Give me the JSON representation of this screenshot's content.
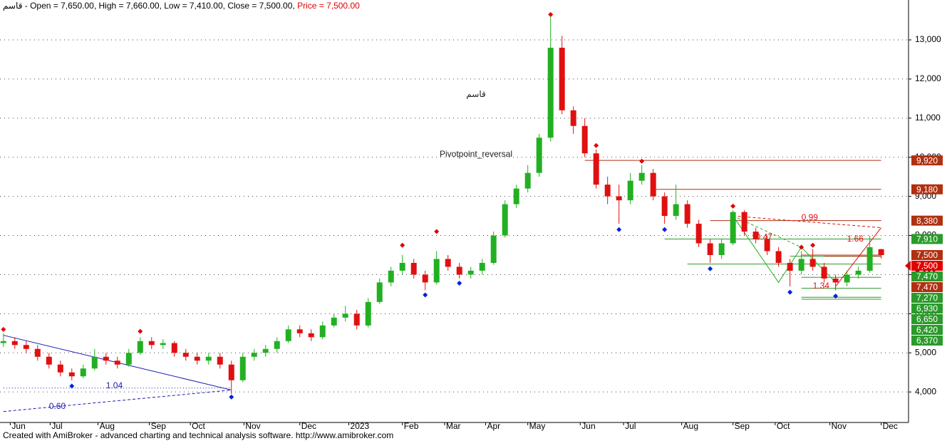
{
  "chart_data": {
    "type": "candlestick",
    "header": {
      "symbol": "قاسم",
      "ohlc": " - Open = 7,650.00, High = 7,660.00, Low = 7,410.00, Close = 7,500.00, ",
      "price": "Price = 7,500.00",
      "price_color": "#e00000"
    },
    "watermark": "قاسم",
    "indicator_name": "Pivotpoint_reversal",
    "footer": "Created with AmiBroker - advanced charting and technical analysis software. http://www.amibroker.com",
    "up_color": "#22b022",
    "down_color": "#e01010",
    "open": [
      5250,
      5300,
      5200,
      5100,
      4900,
      4700,
      4500,
      4400,
      4600,
      4900,
      4800,
      4700,
      5000,
      5300,
      5200,
      5250,
      5000,
      4900,
      4800,
      4900,
      4700,
      4300,
      4900,
      5000,
      5100,
      5300,
      5600,
      5500,
      5400,
      5700,
      5900,
      6000,
      5700,
      6300,
      6800,
      7100,
      7300,
      7000,
      6800,
      7400,
      7200,
      7000,
      7100,
      7300,
      8000,
      8800,
      9200,
      9600,
      10500,
      12800,
      11200,
      10800,
      10100,
      9300,
      9000,
      8900,
      9400,
      9600,
      9000,
      8500,
      8800,
      8300,
      7800,
      7500,
      7800,
      8600,
      8100,
      7900,
      7600,
      7300,
      7100,
      7400,
      7200,
      6900,
      6800,
      7000,
      7100,
      7650
    ],
    "high": [
      5500,
      5400,
      5300,
      5200,
      5000,
      4800,
      4600,
      4700,
      5100,
      5000,
      4900,
      5100,
      5400,
      5400,
      5350,
      5300,
      5100,
      5000,
      5000,
      5000,
      4800,
      5000,
      5100,
      5200,
      5400,
      5700,
      5700,
      5600,
      5800,
      6000,
      6200,
      6100,
      6400,
      6900,
      7200,
      7500,
      7400,
      7100,
      7600,
      7500,
      7300,
      7200,
      7400,
      8100,
      8900,
      9300,
      9800,
      10600,
      13600,
      13100,
      11300,
      11000,
      10200,
      9500,
      9300,
      9600,
      9800,
      9700,
      9100,
      9300,
      8900,
      8400,
      7900,
      7900,
      8650,
      8650,
      8200,
      8000,
      7700,
      7400,
      7600,
      7650,
      7300,
      7000,
      7100,
      7200,
      8000,
      7660
    ],
    "low": [
      5150,
      5100,
      5000,
      4800,
      4600,
      4400,
      4300,
      4350,
      4550,
      4700,
      4600,
      4650,
      4950,
      5100,
      5100,
      4900,
      4800,
      4700,
      4700,
      4600,
      3950,
      4250,
      4800,
      4900,
      5000,
      5250,
      5400,
      5300,
      5350,
      5650,
      5800,
      5600,
      5650,
      6250,
      6700,
      7000,
      6900,
      6600,
      6750,
      7100,
      6900,
      6900,
      7000,
      7250,
      7950,
      8700,
      9100,
      9500,
      10400,
      11100,
      10600,
      10000,
      9200,
      8800,
      8300,
      8800,
      9300,
      8900,
      8300,
      8400,
      8200,
      7700,
      7300,
      7400,
      7750,
      8000,
      7800,
      7500,
      7200,
      6700,
      7000,
      7100,
      6800,
      6600,
      6700,
      6900,
      7050,
      7410
    ],
    "close": [
      5300,
      5200,
      5100,
      4900,
      4700,
      4500,
      4400,
      4600,
      4900,
      4800,
      4700,
      5000,
      5300,
      5200,
      5250,
      5000,
      4900,
      4800,
      4900,
      4700,
      4300,
      4900,
      5000,
      5100,
      5300,
      5600,
      5500,
      5400,
      5700,
      5900,
      6000,
      5700,
      6300,
      6800,
      7100,
      7300,
      7000,
      6800,
      7400,
      7200,
      7000,
      7100,
      7300,
      8000,
      8800,
      9200,
      9600,
      10500,
      12800,
      11200,
      10800,
      10100,
      9300,
      9000,
      8900,
      9400,
      9600,
      9000,
      8500,
      8800,
      8300,
      7800,
      7500,
      7800,
      8600,
      8100,
      7900,
      7600,
      7300,
      7100,
      7400,
      7200,
      6900,
      6800,
      7000,
      7100,
      7700,
      7500
    ],
    "xlim": [
      -0.3,
      79.4
    ],
    "ylim": [
      3220,
      14020
    ],
    "xticks": [
      {
        "value": 0.6,
        "label": "Jun"
      },
      {
        "value": 4.1,
        "label": "Jul"
      },
      {
        "value": 8.3,
        "label": "Aug"
      },
      {
        "value": 12.8,
        "label": "Sep"
      },
      {
        "value": 16.4,
        "label": "Oct"
      },
      {
        "value": 21.1,
        "label": "Nov"
      },
      {
        "value": 26,
        "label": "Dec"
      },
      {
        "value": 30.3,
        "label": "2023"
      },
      {
        "value": 35,
        "label": "Feb"
      },
      {
        "value": 38.7,
        "label": "Mar"
      },
      {
        "value": 42.3,
        "label": "Apr"
      },
      {
        "value": 46,
        "label": "May"
      },
      {
        "value": 50.6,
        "label": "Jun"
      },
      {
        "value": 54.4,
        "label": "Jul"
      },
      {
        "value": 59.5,
        "label": "Aug"
      },
      {
        "value": 64,
        "label": "Sep"
      },
      {
        "value": 67.7,
        "label": "Oct"
      },
      {
        "value": 72.5,
        "label": "Nov"
      },
      {
        "value": 77,
        "label": "Dec"
      }
    ],
    "yticks": [
      {
        "value": 4000,
        "label": "4,000"
      },
      {
        "value": 5000,
        "label": "5,000"
      },
      {
        "value": 6000,
        "label": "6,000"
      },
      {
        "value": 7000,
        "label": "7,000"
      },
      {
        "value": 8000,
        "label": "8,000"
      },
      {
        "value": 9000,
        "label": "9,000"
      },
      {
        "value": 10000,
        "label": "10,000"
      },
      {
        "value": 11000,
        "label": "11,000"
      },
      {
        "value": 12000,
        "label": "12,000"
      },
      {
        "value": 13000,
        "label": "13,000"
      }
    ],
    "grid": true,
    "pivot_highs": {
      "color": "#e00000",
      "x": [
        0,
        12,
        35,
        38,
        48,
        52,
        56,
        64,
        70,
        71
      ],
      "values": [
        5600,
        5550,
        7750,
        8100,
        13650,
        10300,
        9900,
        8750,
        7700,
        7750
      ]
    },
    "pivot_lows": {
      "color": "#0020e0",
      "x": [
        6,
        20,
        37,
        40,
        54,
        58,
        62,
        69,
        73
      ],
      "values": [
        4150,
        3870,
        6480,
        6780,
        8150,
        8150,
        7150,
        6550,
        6450
      ]
    },
    "trendlines": [
      {
        "color": "#1a1ab0",
        "style": "solid",
        "x": [
          0,
          20
        ],
        "values": [
          5450,
          4050
        ]
      },
      {
        "color": "#1a1ab0",
        "style": "dashed",
        "x": [
          0,
          20
        ],
        "values": [
          3500,
          4050
        ]
      },
      {
        "color": "#1a1ab0",
        "style": "dotted",
        "x": [
          0,
          20
        ],
        "values": [
          4100,
          4100
        ]
      },
      {
        "color": "#22b022",
        "style": "solid",
        "x": [
          64,
          68,
          70,
          73
        ],
        "values": [
          8500,
          6800,
          7700,
          6800
        ]
      },
      {
        "color": "#22b022",
        "style": "dashed",
        "x": [
          64,
          70
        ],
        "values": [
          8500,
          7700
        ]
      },
      {
        "color": "#e01010",
        "style": "solid",
        "x": [
          73,
          77
        ],
        "values": [
          6700,
          8200
        ]
      },
      {
        "color": "#e01010",
        "style": "dashed",
        "x": [
          64,
          77
        ],
        "values": [
          8500,
          8200
        ]
      }
    ],
    "annotations": [
      {
        "text": "1.04",
        "x": 9,
        "y": 4150,
        "color": "#1a1ab0"
      },
      {
        "text": "0.60",
        "x": 4,
        "y": 3620,
        "color": "#1a1ab0"
      },
      {
        "text": "0.99",
        "x": 70,
        "y": 8450,
        "color": "#e01010"
      },
      {
        "text": "0.47",
        "x": 66,
        "y": 7950,
        "color": "#e01010"
      },
      {
        "text": "1.66",
        "x": 74,
        "y": 7900,
        "color": "#e01010"
      },
      {
        "text": "1.34",
        "x": 71,
        "y": 6700,
        "color": "#e01010"
      }
    ],
    "levels": [
      {
        "value": 9920,
        "label": "9,920",
        "color": "#b03010",
        "from": 51
      },
      {
        "value": 9180,
        "label": "9,180",
        "color": "#b03010",
        "from": 57
      },
      {
        "value": 8380,
        "label": "8,380",
        "color": "#b03010",
        "from": 62
      },
      {
        "value": 7910,
        "label": "7,910",
        "color": "#2a9a2a",
        "from": 58
      },
      {
        "value": 7500,
        "label": "7,500",
        "color": "#b03010",
        "from": 70
      },
      {
        "value": 7500,
        "label": "7,500",
        "color": "#e00000",
        "current": true
      },
      {
        "value": 7470,
        "label": "7,470",
        "color": "#2a9a2a",
        "from": 69
      },
      {
        "value": 7470,
        "label": "7,470",
        "color": "#b03010",
        "from": 72
      },
      {
        "value": 7270,
        "label": "7,270",
        "color": "#2a9a2a",
        "from": 60
      },
      {
        "value": 6930,
        "label": "6,930",
        "color": "#2a9a2a",
        "from": 70
      },
      {
        "value": 6650,
        "label": "6,650",
        "color": "#2a9a2a",
        "from": 70
      },
      {
        "value": 6420,
        "label": "6,420",
        "color": "#2a9a2a",
        "from": 70
      },
      {
        "value": 6370,
        "label": "6,370",
        "color": "#2a9a2a",
        "from": 70
      }
    ]
  }
}
